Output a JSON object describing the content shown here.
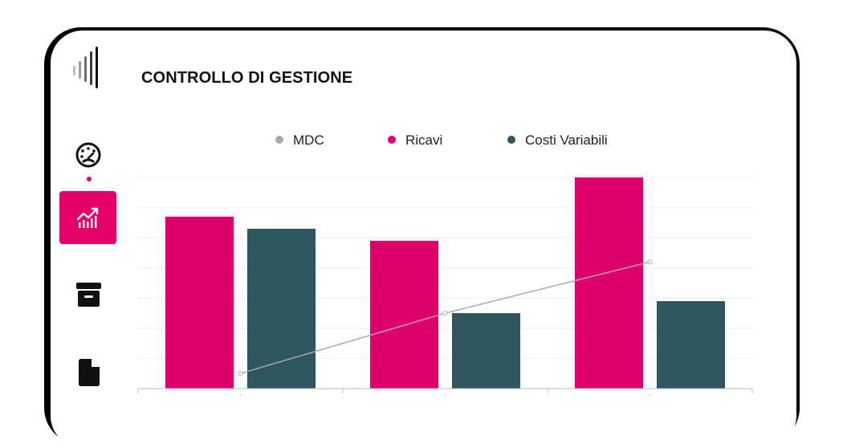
{
  "header": {
    "title": "CONTROLLO DI GESTIONE"
  },
  "sidebar": {
    "items": [
      {
        "icon": "dashboard-gauge-icon",
        "active": false
      },
      {
        "icon": "analytics-chart-icon",
        "active": true
      },
      {
        "icon": "archive-box-icon",
        "active": false
      },
      {
        "icon": "document-icon",
        "active": false
      }
    ],
    "accent_color": "#e5006a"
  },
  "chart_data": {
    "type": "bar",
    "categories": [
      "",
      "",
      ""
    ],
    "series": [
      {
        "name": "Ricavi",
        "type": "bar",
        "color": "#e0006a",
        "values": [
          57,
          49,
          70
        ]
      },
      {
        "name": "Costi Variabili",
        "type": "bar",
        "color": "#2e565e",
        "values": [
          53,
          25,
          29
        ]
      },
      {
        "name": "MDC",
        "type": "line",
        "color": "#aaaaaa",
        "values": [
          5,
          25,
          42
        ]
      }
    ],
    "ylim": [
      0,
      70
    ],
    "grid": true,
    "legend": "top-center"
  }
}
